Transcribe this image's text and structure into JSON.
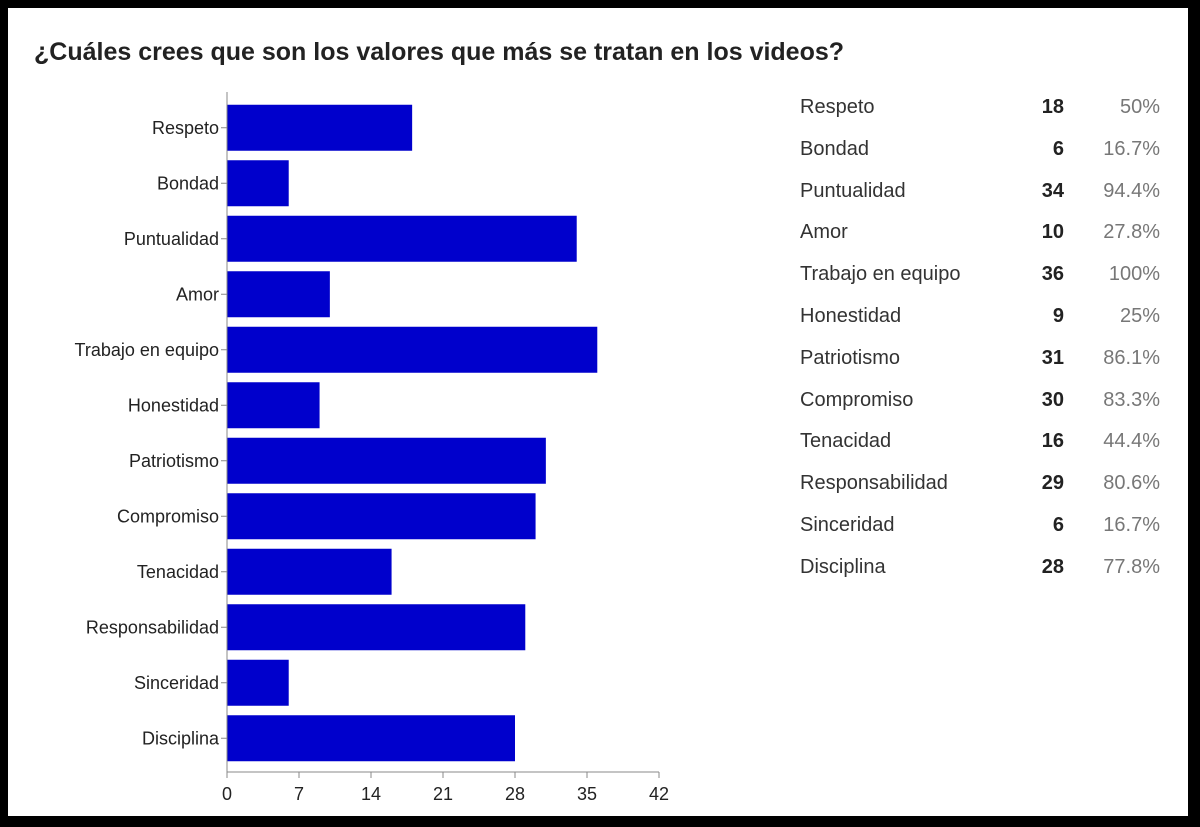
{
  "title": "¿Cuáles crees que son los valores que más se tratan en los videos?",
  "chart_data": {
    "type": "bar",
    "orientation": "horizontal",
    "categories": [
      "Respeto",
      "Bondad",
      "Puntualidad",
      "Amor",
      "Trabajo en equipo",
      "Honestidad",
      "Patriotismo",
      "Compromiso",
      "Tenacidad",
      "Responsabilidad",
      "Sinceridad",
      "Disciplina"
    ],
    "values": [
      18,
      6,
      34,
      10,
      36,
      9,
      31,
      30,
      16,
      29,
      6,
      28
    ],
    "xlim": [
      0,
      42
    ],
    "xticks": [
      0,
      7,
      14,
      21,
      28,
      35,
      42
    ],
    "bar_color": "#0000cc",
    "grid": false,
    "legend": "none"
  },
  "summary_table": [
    {
      "label": "Respeto",
      "count": "18",
      "percent": "50%"
    },
    {
      "label": "Bondad",
      "count": "6",
      "percent": "16.7%"
    },
    {
      "label": "Puntualidad",
      "count": "34",
      "percent": "94.4%"
    },
    {
      "label": "Amor",
      "count": "10",
      "percent": "27.8%"
    },
    {
      "label": "Trabajo en equipo",
      "count": "36",
      "percent": "100%"
    },
    {
      "label": "Honestidad",
      "count": "9",
      "percent": "25%"
    },
    {
      "label": "Patriotismo",
      "count": "31",
      "percent": "86.1%"
    },
    {
      "label": "Compromiso",
      "count": "30",
      "percent": "83.3%"
    },
    {
      "label": "Tenacidad",
      "count": "16",
      "percent": "44.4%"
    },
    {
      "label": "Responsabilidad",
      "count": "29",
      "percent": "80.6%"
    },
    {
      "label": "Sinceridad",
      "count": "6",
      "percent": "16.7%"
    },
    {
      "label": "Disciplina",
      "count": "28",
      "percent": "77.8%"
    }
  ]
}
